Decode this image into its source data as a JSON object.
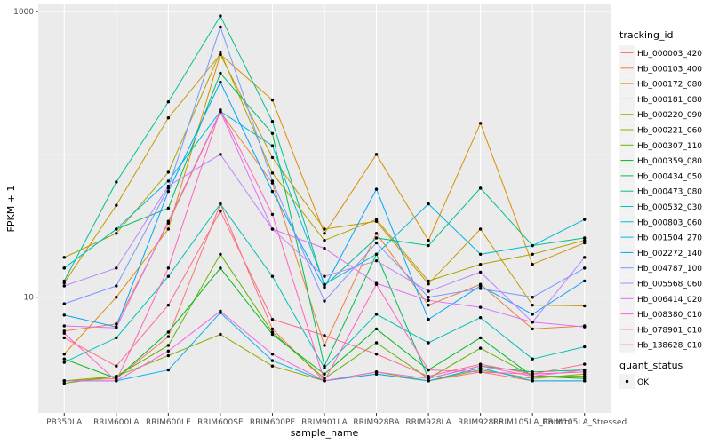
{
  "chart_data": {
    "type": "line",
    "xlabel": "sample_name",
    "ylabel": "FPKM + 1",
    "y_scale": "log10",
    "ylim": [
      1.55,
      1120
    ],
    "y_ticks": [
      {
        "value": 10,
        "label": "10"
      },
      {
        "value": 1000,
        "label": "1000"
      }
    ],
    "grid": true,
    "categories": [
      "PB350LA",
      "RRIM600LA",
      "RRIM600LE",
      "RRIM600SE",
      "RRIM600PE",
      "RRIM901LA",
      "RRIM928BA",
      "RRIM928LA",
      "RRIM928LE",
      "RRIM105LA_Control",
      "RRIM105LA_Stressed"
    ],
    "legend_position": "right",
    "legend": {
      "title": "tracking_id",
      "status_title": "quant_status",
      "status_items": [
        "OK"
      ]
    },
    "series": [
      {
        "name": "Hb_000003_420",
        "color": "#F8766D",
        "values": [
          2.6,
          2.7,
          5.3,
          45,
          6.0,
          2.6,
          2.9,
          2.6,
          3.0,
          2.6,
          2.6
        ]
      },
      {
        "name": "Hb_000103_400",
        "color": "#EC8239",
        "values": [
          5.8,
          6.5,
          33,
          198,
          63,
          4.6,
          28,
          8.8,
          12.3,
          6.0,
          6.3
        ]
      },
      {
        "name": "Hb_000172_080",
        "color": "#DB8E00",
        "values": [
          4.0,
          10.0,
          30,
          500,
          240,
          28,
          100,
          25,
          165,
          17,
          24
        ]
      },
      {
        "name": "Hb_000181_080",
        "color": "#C79800",
        "values": [
          12.6,
          44,
          180,
          500,
          95,
          30,
          34,
          12.4,
          30,
          8.8,
          8.7
        ]
      },
      {
        "name": "Hb_000220_090",
        "color": "#AEA200",
        "values": [
          19,
          28,
          75,
          520,
          74,
          25,
          35,
          13,
          17,
          20,
          25
        ]
      },
      {
        "name": "Hb_000221_060",
        "color": "#8FAA00",
        "values": [
          2.6,
          2.8,
          3.9,
          5.5,
          3.3,
          2.6,
          3.0,
          2.6,
          3.1,
          2.7,
          2.9
        ]
      },
      {
        "name": "Hb_000307_110",
        "color": "#64B200",
        "values": [
          2.5,
          2.8,
          4.6,
          20,
          5.7,
          2.7,
          4.8,
          2.7,
          4.4,
          2.8,
          2.8
        ]
      },
      {
        "name": "Hb_000359_080",
        "color": "#00B81B",
        "values": [
          3.7,
          2.7,
          5.7,
          16,
          5.5,
          2.9,
          6.0,
          3.1,
          5.2,
          2.8,
          2.7
        ]
      },
      {
        "name": "Hb_000434_050",
        "color": "#00BD5C",
        "values": [
          16,
          30,
          42,
          370,
          140,
          3.3,
          20,
          2.7,
          3.3,
          3.0,
          3.1
        ]
      },
      {
        "name": "Hb_000473_080",
        "color": "#00C08E",
        "values": [
          13,
          64,
          233,
          930,
          170,
          12.0,
          26,
          23,
          58,
          23,
          26
        ]
      },
      {
        "name": "Hb_000532_030",
        "color": "#00C0B8",
        "values": [
          3.5,
          5.2,
          14,
          45,
          14,
          3.2,
          7.6,
          4.8,
          7.2,
          3.7,
          4.5
        ]
      },
      {
        "name": "Hb_000803_060",
        "color": "#00BCD8",
        "values": [
          16,
          30,
          65,
          200,
          115,
          12.3,
          20,
          45,
          20,
          23,
          35
        ]
      },
      {
        "name": "Hb_001504_270",
        "color": "#00B4EF",
        "values": [
          2.6,
          2.6,
          3.1,
          7.8,
          3.6,
          2.6,
          2.9,
          2.6,
          3.2,
          2.6,
          2.6
        ]
      },
      {
        "name": "Hb_002272_140",
        "color": "#00A5FF",
        "values": [
          7.5,
          6.2,
          55,
          320,
          55,
          11.7,
          57,
          7.0,
          12.0,
          7.6,
          13
        ]
      },
      {
        "name": "Hb_004787_100",
        "color": "#7997FF",
        "values": [
          9.0,
          12,
          58,
          780,
          65,
          9.4,
          24,
          10.0,
          11.5,
          10.0,
          16
        ]
      },
      {
        "name": "Hb_005568_060",
        "color": "#BF83FF",
        "values": [
          12,
          16,
          60,
          100,
          30,
          14,
          18,
          11.0,
          15,
          6.7,
          19
        ]
      },
      {
        "name": "Hb_006414_020",
        "color": "#E16EF7",
        "values": [
          6.3,
          6.1,
          34,
          200,
          30,
          22,
          12.5,
          9.5,
          8.5,
          6.7,
          6.2
        ]
      },
      {
        "name": "Hb_008380_010",
        "color": "#F564E3",
        "values": [
          2.6,
          2.6,
          4.2,
          8.0,
          4.0,
          2.6,
          3.0,
          2.7,
          3.3,
          2.8,
          3.1
        ]
      },
      {
        "name": "Hb_078901_010",
        "color": "#FF61C3",
        "values": [
          5.6,
          2.6,
          16,
          205,
          38,
          2.6,
          12.3,
          3.1,
          3.0,
          2.9,
          3.0
        ]
      },
      {
        "name": "Hb_138628_010",
        "color": "#FF6C90",
        "values": [
          5.2,
          3.3,
          8.8,
          40,
          7.0,
          5.4,
          4.0,
          2.8,
          3.4,
          2.9,
          3.4
        ]
      }
    ]
  }
}
